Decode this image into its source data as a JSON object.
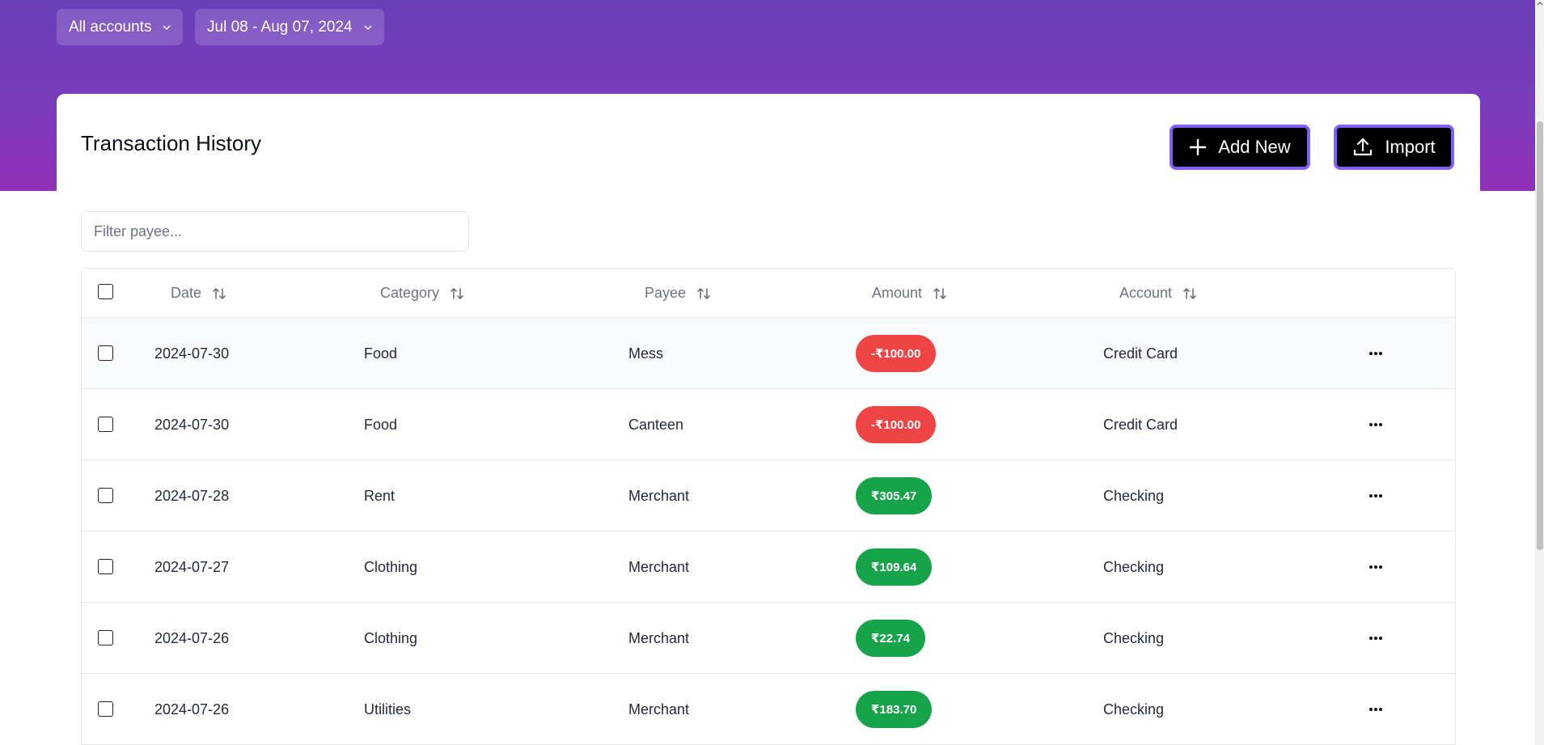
{
  "header": {
    "account_filter": "All accounts",
    "date_filter": "Jul 08 - Aug 07, 2024"
  },
  "card": {
    "title": "Transaction History",
    "add_new_label": "Add New",
    "import_label": "Import",
    "filter_placeholder": "Filter payee..."
  },
  "table": {
    "columns": {
      "date": "Date",
      "category": "Category",
      "payee": "Payee",
      "amount": "Amount",
      "account": "Account"
    },
    "rows": [
      {
        "date": "2024-07-30",
        "category": "Food",
        "payee": "Mess",
        "amount": "-₹100.00",
        "account": "Credit Card",
        "status": "negative"
      },
      {
        "date": "2024-07-30",
        "category": "Food",
        "payee": "Canteen",
        "amount": "-₹100.00",
        "account": "Credit Card",
        "status": "negative"
      },
      {
        "date": "2024-07-28",
        "category": "Rent",
        "payee": "Merchant",
        "amount": "₹305.47",
        "account": "Checking",
        "status": "positive"
      },
      {
        "date": "2024-07-27",
        "category": "Clothing",
        "payee": "Merchant",
        "amount": "₹109.64",
        "account": "Checking",
        "status": "positive"
      },
      {
        "date": "2024-07-26",
        "category": "Clothing",
        "payee": "Merchant",
        "amount": "₹22.74",
        "account": "Checking",
        "status": "positive"
      },
      {
        "date": "2024-07-26",
        "category": "Utilities",
        "payee": "Merchant",
        "amount": "₹183.70",
        "account": "Checking",
        "status": "positive"
      }
    ]
  },
  "colors": {
    "negative": "#ef4444",
    "positive": "#16a34a",
    "accent": "#8b5cf6"
  },
  "icons": {
    "add": "plus-icon",
    "import": "upload-icon",
    "sort": "sort-icon",
    "more": "ellipsis-icon",
    "dropdown": "chevron-down-icon"
  }
}
